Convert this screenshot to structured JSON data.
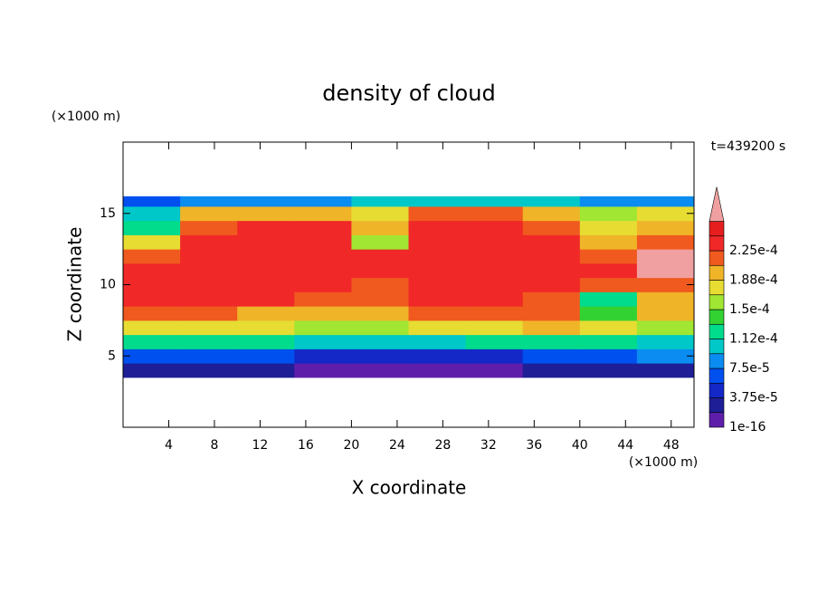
{
  "chart_data": {
    "type": "contour",
    "title": "density of cloud",
    "y_unit_label": "(×1000 m)",
    "x_unit_label": "(×1000 m)",
    "time_label": "t=439200 s",
    "xlabel": "X coordinate",
    "ylabel": "Z coordinate",
    "xlim": [
      0,
      50
    ],
    "ylim": [
      0,
      20
    ],
    "xticks": [
      4,
      8,
      12,
      16,
      20,
      24,
      28,
      32,
      36,
      40,
      44,
      48
    ],
    "yticks": [
      5,
      10,
      15
    ],
    "x_edges": [
      0,
      5,
      10,
      15,
      20,
      25,
      30,
      35,
      40,
      45,
      50
    ],
    "z_edges": [
      3.5,
      4.5,
      5.5,
      6.5,
      7.5,
      8.5,
      9.5,
      10.5,
      11.5,
      12.5,
      13.5,
      14.5,
      15.5,
      16.2
    ],
    "values": [
      [
        2e-05,
        2e-05,
        2e-05,
        1e-05,
        1e-05,
        1e-05,
        1e-05,
        2e-05,
        2e-05,
        2e-05
      ],
      [
        7e-05,
        7e-05,
        7e-05,
        5e-05,
        4e-05,
        4e-05,
        5e-05,
        7e-05,
        7e-05,
        8e-05
      ],
      [
        0.00013,
        0.00013,
        0.00012,
        0.00011,
        0.0001,
        0.00011,
        0.00012,
        0.00013,
        0.00012,
        0.00011
      ],
      [
        0.00018,
        0.00017,
        0.00017,
        0.00016,
        0.00016,
        0.00017,
        0.00018,
        0.00019,
        0.00017,
        0.00016
      ],
      [
        0.00021,
        0.00021,
        0.0002,
        0.00019,
        0.0002,
        0.00021,
        0.00021,
        0.00021,
        0.00014,
        0.00019
      ],
      [
        0.00023,
        0.00023,
        0.00023,
        0.00022,
        0.00022,
        0.00023,
        0.00023,
        0.00022,
        0.00012,
        0.0002
      ],
      [
        0.00023,
        0.00023,
        0.00023,
        0.00023,
        0.00022,
        0.00023,
        0.00023,
        0.00023,
        0.00021,
        0.00021
      ],
      [
        0.00023,
        0.00023,
        0.00023,
        0.00023,
        0.00024,
        0.00024,
        0.00023,
        0.00023,
        0.00023,
        0.00027
      ],
      [
        0.00022,
        0.00023,
        0.00023,
        0.00023,
        0.00024,
        0.00024,
        0.00023,
        0.00023,
        0.00022,
        0.00027
      ],
      [
        0.00018,
        0.00023,
        0.00023,
        0.00023,
        0.00016,
        0.00023,
        0.00023,
        0.00023,
        0.00019,
        0.00021
      ],
      [
        0.00013,
        0.00022,
        0.00023,
        0.00023,
        0.00019,
        0.00023,
        0.00023,
        0.00022,
        0.00018,
        0.0002
      ],
      [
        0.00011,
        0.00019,
        0.0002,
        0.0002,
        0.00018,
        0.00021,
        0.00021,
        0.0002,
        0.00016,
        0.00018
      ],
      [
        7e-05,
        8e-05,
        9e-05,
        9e-05,
        0.0001,
        0.00011,
        0.00011,
        0.0001,
        8e-05,
        8e-05
      ]
    ],
    "levels": [
      {
        "value": 1e-16,
        "label": "1e-16"
      },
      1.875e-05,
      {
        "value": 3.75e-05,
        "label": "3.75e-5"
      },
      5.625e-05,
      {
        "value": 7.5e-05,
        "label": "7.5e-5"
      },
      9.375e-05,
      {
        "value": 0.0001125,
        "label": "1.12e-4"
      },
      0.00013125,
      {
        "value": 0.00015,
        "label": "1.5e-4"
      },
      0.00016875,
      {
        "value": 0.0001875,
        "label": "1.88e-4"
      },
      0.00020625,
      {
        "value": 0.000225,
        "label": "2.25e-4"
      },
      0.00024375,
      0.0002625
    ],
    "colors": [
      "#5f1eaa",
      "#1e1e96",
      "#1428c8",
      "#0050f0",
      "#0a8cf0",
      "#00c8c8",
      "#00dc8c",
      "#32d232",
      "#a0e632",
      "#e6dc32",
      "#f0b428",
      "#f05a1e",
      "#f02828",
      "#e61e1e"
    ],
    "extend_color": "#f0a0a0"
  }
}
